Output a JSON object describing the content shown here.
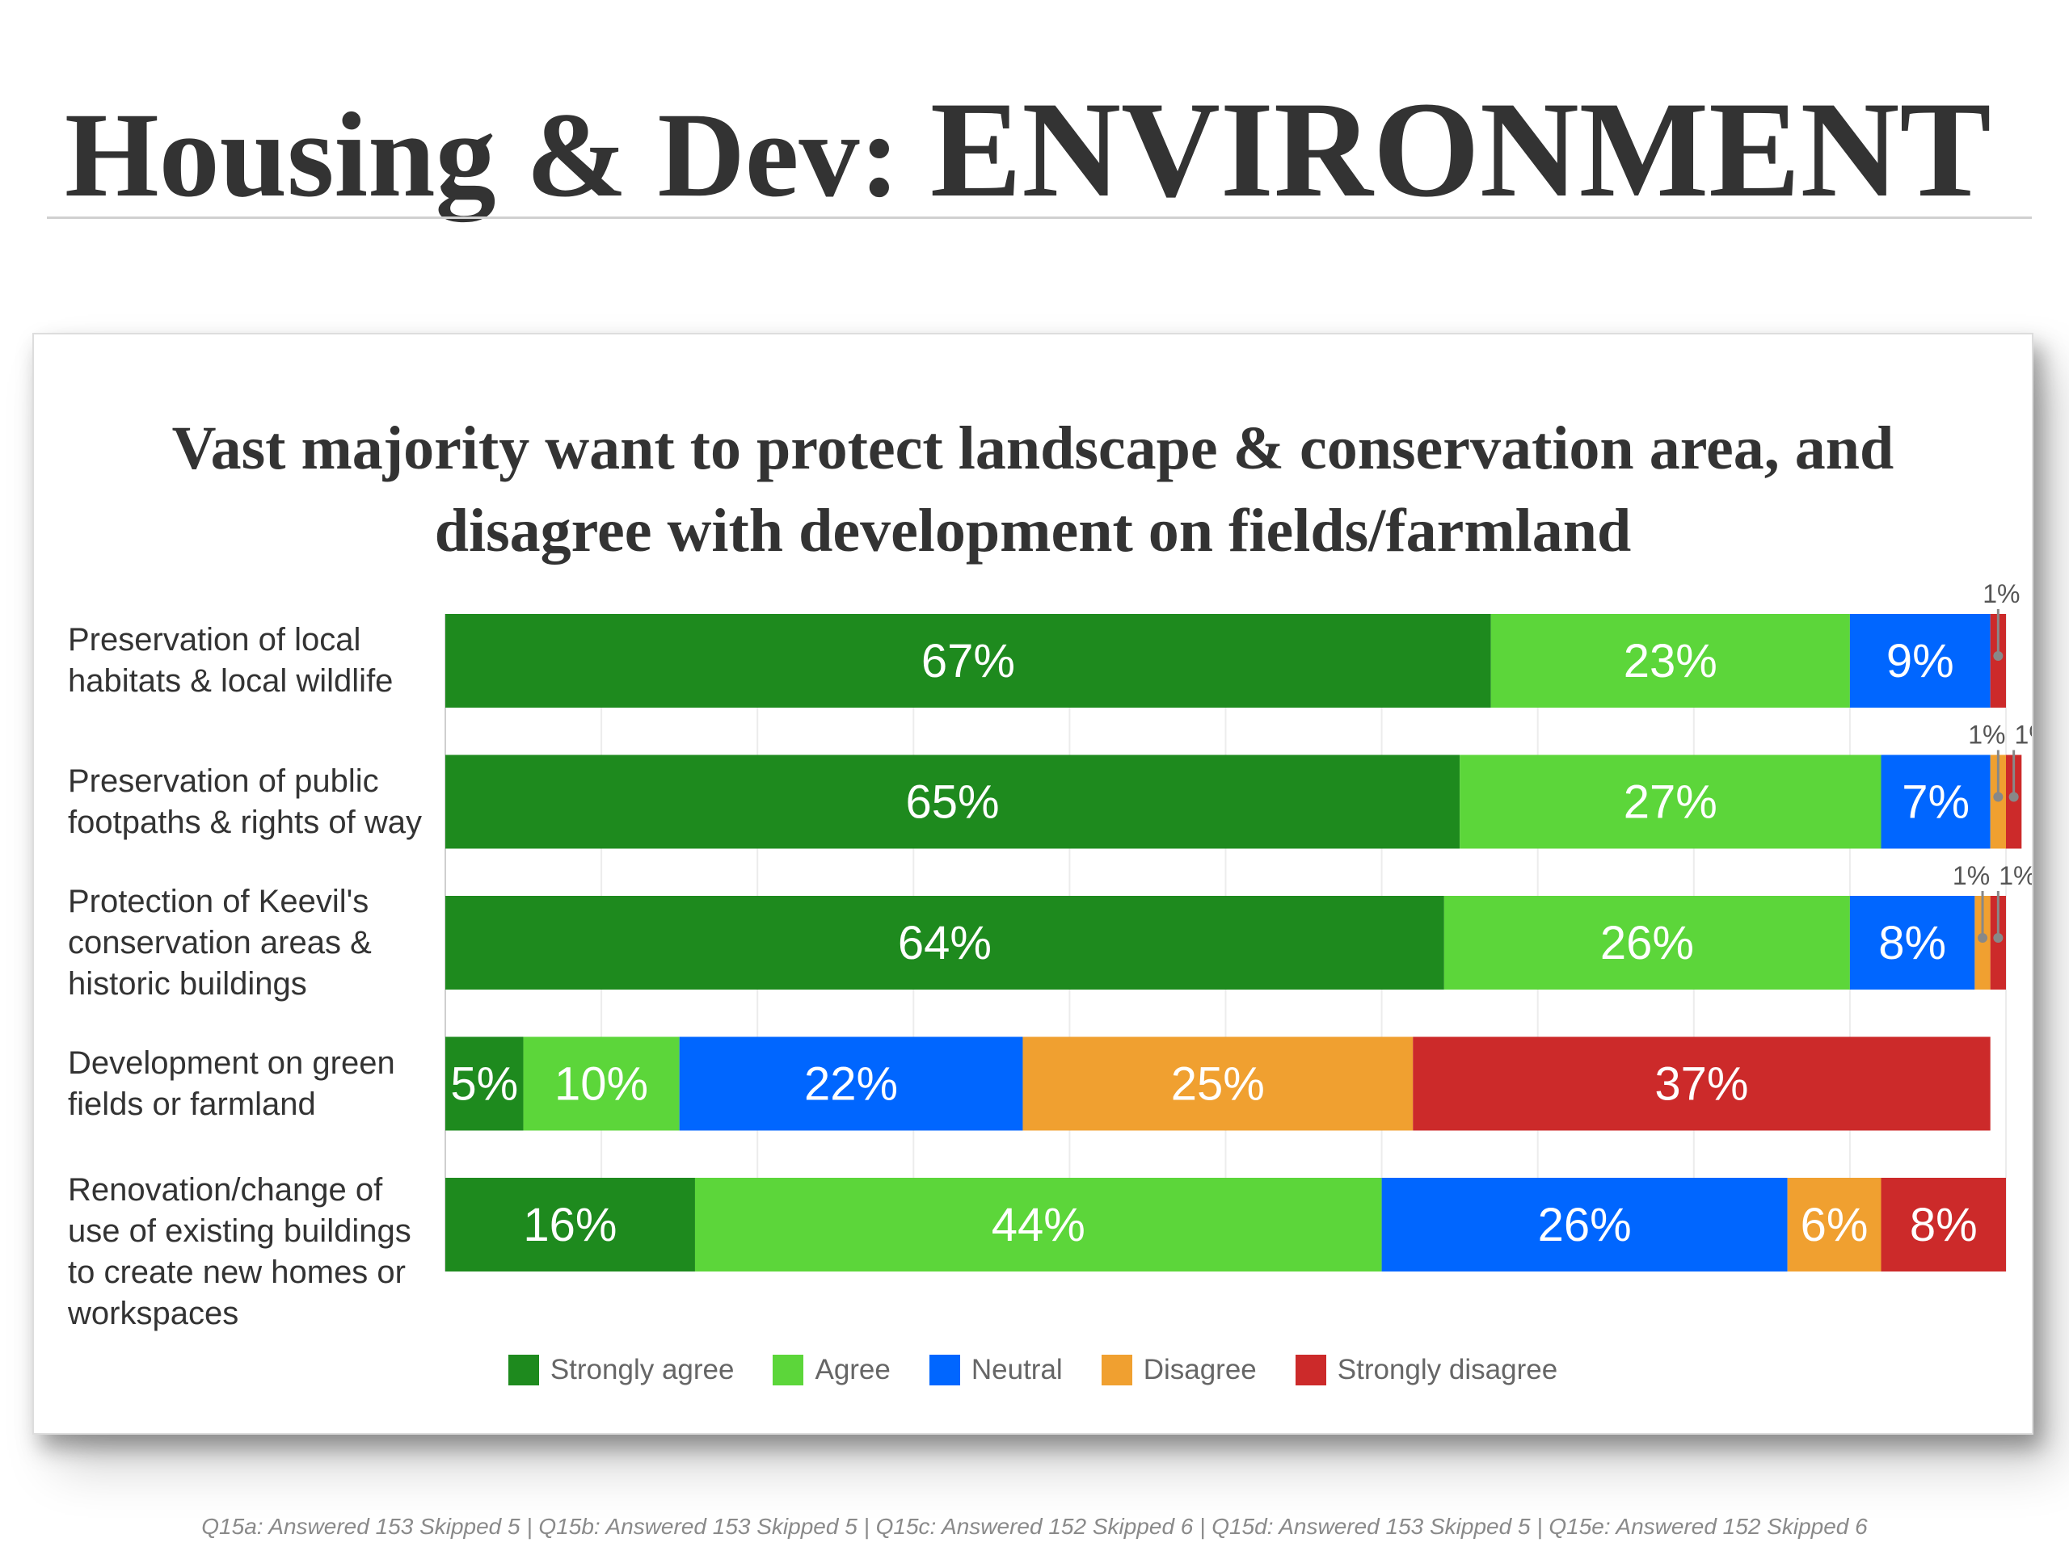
{
  "page": {
    "title_lead": "Housing & Dev: ",
    "title_accent": "ENVIRONMENT",
    "footnote": "Q15a: Answered 153 Skipped 5 | Q15b: Answered 153 Skipped 5 | Q15c: Answered 152 Skipped 6 | Q15d: Answered 153 Skipped 5 | Q15e: Answered 152 Skipped 6"
  },
  "chart_data": {
    "type": "bar",
    "orientation": "horizontal",
    "stacked": true,
    "title_lines": [
      "Vast majority want to protect landscape & conservation area, and",
      "disagree with development on fields/farmland"
    ],
    "categories": [
      [
        "Preservation of local",
        "habitats & local wildlife"
      ],
      [
        "Preservation of public",
        "footpaths & rights of way"
      ],
      [
        "Protection of Keevil's",
        "conservation areas &",
        "historic buildings"
      ],
      [
        "Development on green",
        "fields or farmland"
      ],
      [
        "Renovation/change of",
        "use of existing buildings",
        "to create new homes or",
        "workspaces"
      ]
    ],
    "series": [
      {
        "name": "Strongly agree",
        "color": "#1e8a1e",
        "values": [
          67,
          65,
          64,
          5,
          16
        ]
      },
      {
        "name": "Agree",
        "color": "#5cd63a",
        "values": [
          23,
          27,
          26,
          10,
          44
        ]
      },
      {
        "name": "Neutral",
        "color": "#0066ff",
        "values": [
          9,
          7,
          8,
          22,
          26
        ]
      },
      {
        "name": "Disagree",
        "color": "#f0a030",
        "values": [
          0,
          1,
          1,
          25,
          6
        ]
      },
      {
        "name": "Strongly disagree",
        "color": "#cc2a2a",
        "values": [
          1,
          1,
          1,
          37,
          8
        ]
      }
    ],
    "xlim": [
      0,
      100
    ],
    "grid": true,
    "data_labels": true,
    "legend_position": "bottom"
  }
}
